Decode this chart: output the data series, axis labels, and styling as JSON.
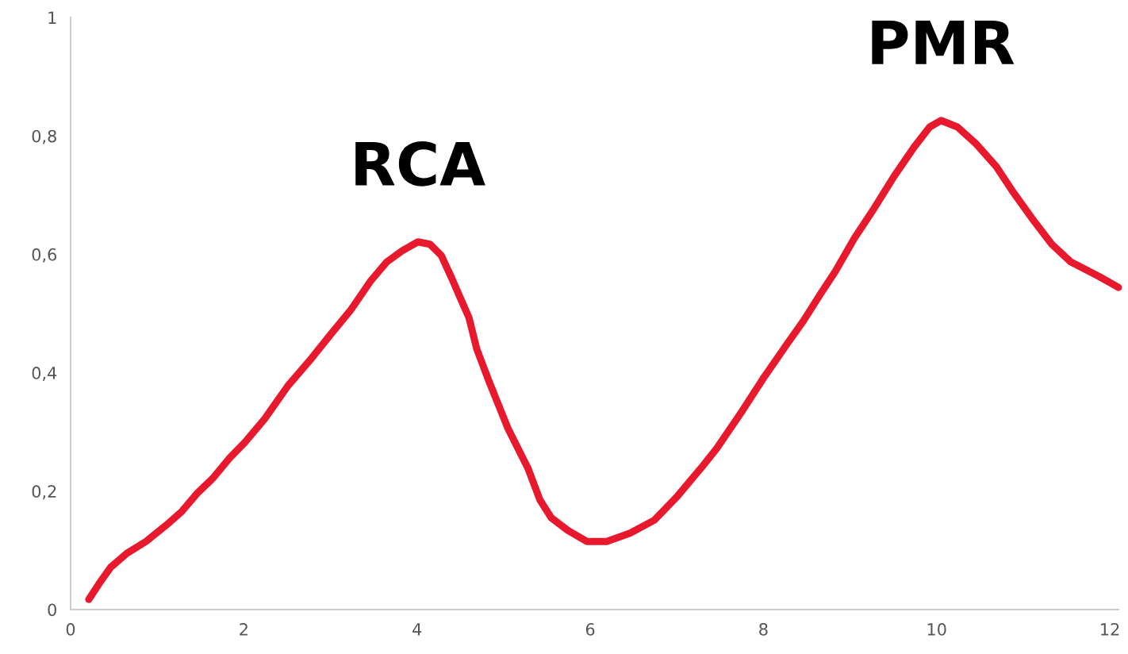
{
  "chart_data": {
    "type": "line",
    "x": [
      0.21,
      0.33,
      0.46,
      0.65,
      0.87,
      1.1,
      1.28,
      1.46,
      1.65,
      1.83,
      2.01,
      2.24,
      2.51,
      2.78,
      3.01,
      3.24,
      3.46,
      3.65,
      3.83,
      4.01,
      4.15,
      4.28,
      4.4,
      4.51,
      4.6,
      4.69,
      4.83,
      4.94,
      5.05,
      5.19,
      5.28,
      5.42,
      5.55,
      5.74,
      5.96,
      6.19,
      6.46,
      6.74,
      7.01,
      7.28,
      7.46,
      7.74,
      8.01,
      8.28,
      8.46,
      8.65,
      8.83,
      9.05,
      9.28,
      9.51,
      9.74,
      9.92,
      10.05,
      10.24,
      10.46,
      10.69,
      10.87,
      11.1,
      11.33,
      11.55,
      11.87,
      12.1
    ],
    "series": [
      {
        "color": "#e8192c",
        "values": [
          0.017,
          0.044,
          0.071,
          0.095,
          0.115,
          0.142,
          0.165,
          0.196,
          0.223,
          0.255,
          0.282,
          0.322,
          0.378,
          0.424,
          0.466,
          0.507,
          0.554,
          0.587,
          0.606,
          0.621,
          0.617,
          0.598,
          0.56,
          0.523,
          0.493,
          0.44,
          0.386,
          0.346,
          0.306,
          0.265,
          0.239,
          0.185,
          0.155,
          0.134,
          0.115,
          0.115,
          0.129,
          0.151,
          0.192,
          0.239,
          0.272,
          0.332,
          0.393,
          0.45,
          0.487,
          0.531,
          0.571,
          0.627,
          0.678,
          0.732,
          0.781,
          0.815,
          0.826,
          0.815,
          0.786,
          0.748,
          0.708,
          0.661,
          0.617,
          0.587,
          0.563,
          0.544
        ]
      }
    ],
    "xlim": [
      0,
      12.1
    ],
    "xticks": [
      0,
      2,
      4,
      6,
      8,
      10,
      12
    ],
    "ylim": [
      0,
      1
    ],
    "yticks": [
      0,
      {
        "value": 0.2,
        "label": "0,2"
      },
      {
        "value": 0.4,
        "label": "0,4"
      },
      {
        "value": 0.6,
        "label": "0,6"
      },
      {
        "value": 0.8,
        "label": "0,8"
      },
      1
    ],
    "annotations": [
      {
        "text": "RCA",
        "x": 4.01,
        "y": 0.621
      },
      {
        "text": "PMR",
        "x": 10.05,
        "y": 0.826
      }
    ],
    "grid": false,
    "marker": "none",
    "line_style": "solid"
  }
}
